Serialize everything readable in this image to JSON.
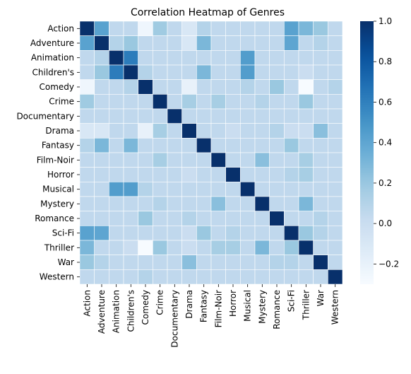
{
  "chart_data": {
    "type": "heatmap",
    "title": "Correlation Heatmap of Genres",
    "xlabel": "",
    "ylabel": "",
    "categories": [
      "Action",
      "Adventure",
      "Animation",
      "Children's",
      "Comedy",
      "Crime",
      "Documentary",
      "Drama",
      "Fantasy",
      "Film-Noir",
      "Horror",
      "Musical",
      "Mystery",
      "Romance",
      "Sci-Fi",
      "Thriller",
      "War",
      "Western"
    ],
    "values": [
      [
        1.0,
        0.42,
        0.05,
        0.05,
        -0.25,
        0.18,
        0.05,
        -0.1,
        0.1,
        0.05,
        0.05,
        0.05,
        0.05,
        0.05,
        0.42,
        0.3,
        0.2,
        0.05
      ],
      [
        0.42,
        1.0,
        0.1,
        0.2,
        0.05,
        0.05,
        0.05,
        -0.1,
        0.3,
        0.05,
        0.05,
        0.05,
        0.05,
        0.05,
        0.4,
        0.05,
        0.1,
        0.05
      ],
      [
        0.05,
        0.1,
        1.0,
        0.62,
        0.05,
        0.05,
        0.05,
        0.05,
        0.05,
        0.05,
        0.05,
        0.45,
        0.05,
        0.05,
        0.05,
        0.05,
        0.05,
        0.05
      ],
      [
        0.05,
        0.2,
        0.62,
        1.0,
        0.1,
        0.05,
        0.05,
        0.05,
        0.3,
        0.05,
        0.05,
        0.45,
        0.05,
        0.05,
        0.05,
        0.0,
        0.05,
        0.05
      ],
      [
        -0.25,
        0.05,
        0.05,
        0.1,
        1.0,
        0.05,
        0.05,
        -0.2,
        0.05,
        0.05,
        0.05,
        0.1,
        0.05,
        0.2,
        0.05,
        -0.3,
        0.05,
        0.1
      ],
      [
        0.18,
        0.05,
        0.05,
        0.05,
        0.05,
        1.0,
        0.05,
        0.15,
        0.05,
        0.15,
        0.05,
        0.05,
        0.1,
        0.05,
        0.05,
        0.2,
        0.05,
        0.05
      ],
      [
        0.05,
        0.05,
        0.05,
        0.05,
        0.05,
        0.05,
        1.0,
        0.05,
        0.05,
        0.05,
        0.05,
        0.05,
        0.05,
        0.05,
        0.05,
        0.05,
        0.05,
        0.05
      ],
      [
        -0.1,
        -0.1,
        0.05,
        0.05,
        -0.2,
        0.15,
        0.05,
        1.0,
        0.05,
        0.05,
        0.0,
        0.05,
        0.05,
        0.1,
        0.0,
        0.0,
        0.25,
        0.05
      ],
      [
        0.1,
        0.3,
        0.05,
        0.3,
        0.05,
        0.05,
        0.05,
        0.05,
        1.0,
        0.05,
        0.05,
        0.05,
        0.05,
        0.05,
        0.2,
        0.05,
        0.05,
        0.05
      ],
      [
        0.05,
        0.05,
        0.05,
        0.05,
        0.05,
        0.15,
        0.05,
        0.05,
        0.05,
        1.0,
        0.05,
        0.05,
        0.25,
        0.05,
        0.05,
        0.15,
        0.05,
        0.05
      ],
      [
        0.05,
        0.05,
        0.05,
        0.05,
        0.05,
        0.05,
        0.05,
        0.0,
        0.05,
        0.05,
        1.0,
        0.05,
        0.05,
        0.05,
        0.1,
        0.15,
        0.05,
        0.05
      ],
      [
        0.05,
        0.05,
        0.45,
        0.45,
        0.1,
        0.05,
        0.05,
        0.05,
        0.05,
        0.05,
        0.05,
        1.0,
        0.05,
        0.05,
        0.05,
        0.05,
        0.05,
        0.05
      ],
      [
        0.05,
        0.05,
        0.05,
        0.05,
        0.05,
        0.1,
        0.05,
        0.05,
        0.05,
        0.25,
        0.05,
        0.05,
        1.0,
        0.05,
        0.05,
        0.3,
        0.05,
        0.05
      ],
      [
        0.05,
        0.05,
        0.05,
        0.05,
        0.2,
        0.05,
        0.05,
        0.1,
        0.05,
        0.05,
        0.05,
        0.05,
        0.05,
        1.0,
        0.05,
        0.05,
        0.1,
        0.05
      ],
      [
        0.42,
        0.4,
        0.05,
        0.05,
        0.05,
        0.05,
        0.05,
        0.0,
        0.2,
        0.05,
        0.1,
        0.05,
        0.05,
        0.05,
        1.0,
        0.2,
        0.1,
        0.05
      ],
      [
        0.3,
        0.05,
        0.05,
        0.0,
        -0.3,
        0.2,
        0.05,
        0.0,
        0.05,
        0.15,
        0.15,
        0.05,
        0.3,
        0.05,
        0.2,
        1.0,
        0.05,
        0.05
      ],
      [
        0.2,
        0.1,
        0.05,
        0.05,
        0.05,
        0.05,
        0.05,
        0.25,
        0.05,
        0.05,
        0.05,
        0.05,
        0.05,
        0.1,
        0.1,
        0.05,
        1.0,
        0.05
      ],
      [
        0.05,
        0.05,
        0.05,
        0.05,
        0.1,
        0.05,
        0.05,
        0.05,
        0.05,
        0.05,
        0.05,
        0.05,
        0.05,
        0.05,
        0.05,
        0.05,
        0.05,
        1.0
      ]
    ],
    "colormap": {
      "low": "#f7fbff",
      "high": "#08306b"
    },
    "vmin": -0.3,
    "vmax": 1.0,
    "colorbar_ticks": [
      -0.2,
      0.0,
      0.2,
      0.4,
      0.6,
      0.8,
      1.0
    ],
    "colorbar_tick_labels": [
      "−0.2",
      "0.0",
      "0.2",
      "0.4",
      "0.6",
      "0.8",
      "1.0"
    ],
    "grid": true,
    "legend": "colorbar-right"
  }
}
